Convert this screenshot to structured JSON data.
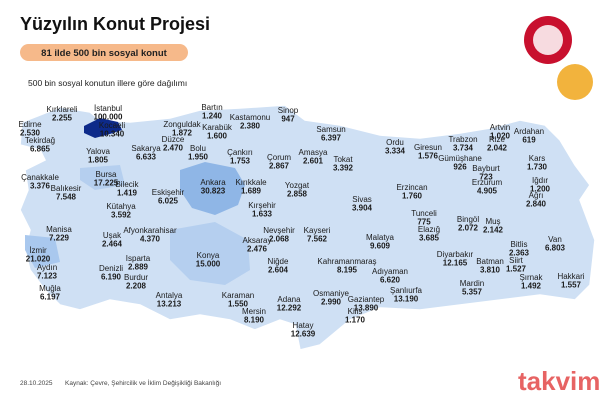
{
  "header": {
    "title": "Yüzyılın Konut Projesi",
    "badge": "81 ilde 500 bin sosyal konut",
    "caption": "500 bin sosyal konutun illere göre dağılımı"
  },
  "provinces": [
    {
      "name": "Kırklareli",
      "value": "2.255"
    },
    {
      "name": "İstanbul",
      "value": "100.000"
    },
    {
      "name": "Edirne",
      "value": "2.530"
    },
    {
      "name": "Tekirdağ",
      "value": "6.865"
    },
    {
      "name": "Kocaeli",
      "value": "10.340"
    },
    {
      "name": "Zonguldak",
      "value": "1.872"
    },
    {
      "name": "Bartın",
      "value": "1.240"
    },
    {
      "name": "Kastamonu",
      "value": "2.380"
    },
    {
      "name": "Sinop",
      "value": "947"
    },
    {
      "name": "Karabük",
      "value": "1.600"
    },
    {
      "name": "Samsun",
      "value": "6.397"
    },
    {
      "name": "Artvin",
      "value": "1.020"
    },
    {
      "name": "Ardahan",
      "value": "619"
    },
    {
      "name": "Yalova",
      "value": "1.805"
    },
    {
      "name": "Sakarya",
      "value": "6.633"
    },
    {
      "name": "Düzce",
      "value": "2.470"
    },
    {
      "name": "Bolu",
      "value": "1.950"
    },
    {
      "name": "Çankırı",
      "value": "1.753"
    },
    {
      "name": "Çorum",
      "value": "2.867"
    },
    {
      "name": "Amasya",
      "value": "2.601"
    },
    {
      "name": "Tokat",
      "value": "3.392"
    },
    {
      "name": "Ordu",
      "value": "3.334"
    },
    {
      "name": "Giresun",
      "value": "1.576"
    },
    {
      "name": "Trabzon",
      "value": "3.734"
    },
    {
      "name": "Rize",
      "value": "2.042"
    },
    {
      "name": "Gümüşhane",
      "value": "926"
    },
    {
      "name": "Bayburt",
      "value": "723"
    },
    {
      "name": "Kars",
      "value": "1.730"
    },
    {
      "name": "Çanakkale",
      "value": "3.376"
    },
    {
      "name": "Bursa",
      "value": "17.225"
    },
    {
      "name": "Bilecik",
      "value": "1.419"
    },
    {
      "name": "Balıkesir",
      "value": "7.548"
    },
    {
      "name": "Eskişehir",
      "value": "6.025"
    },
    {
      "name": "Ankara",
      "value": "30.823"
    },
    {
      "name": "Kırıkkale",
      "value": "1.689"
    },
    {
      "name": "Yozgat",
      "value": "2.858"
    },
    {
      "name": "Erzincan",
      "value": "1.760"
    },
    {
      "name": "Erzurum",
      "value": "4.905"
    },
    {
      "name": "Iğdır",
      "value": "1.200"
    },
    {
      "name": "Kütahya",
      "value": "3.592"
    },
    {
      "name": "Kırşehir",
      "value": "1.633"
    },
    {
      "name": "Sivas",
      "value": "3.904"
    },
    {
      "name": "Ağrı",
      "value": "2.840"
    },
    {
      "name": "Manisa",
      "value": "7.229"
    },
    {
      "name": "Uşak",
      "value": "2.464"
    },
    {
      "name": "Afyonkarahisar",
      "value": "4.370"
    },
    {
      "name": "Nevşehir",
      "value": "2.068"
    },
    {
      "name": "Kayseri",
      "value": "7.562"
    },
    {
      "name": "Tunceli",
      "value": "775"
    },
    {
      "name": "Elazığ",
      "value": "3.685"
    },
    {
      "name": "Bingöl",
      "value": "2.072"
    },
    {
      "name": "Muş",
      "value": "2.142"
    },
    {
      "name": "Malatya",
      "value": "9.609"
    },
    {
      "name": "Aksaray",
      "value": "2.476"
    },
    {
      "name": "İzmir",
      "value": "21.020"
    },
    {
      "name": "Konya",
      "value": "15.000"
    },
    {
      "name": "Isparta",
      "value": "2.889"
    },
    {
      "name": "Niğde",
      "value": "2.604"
    },
    {
      "name": "Bitlis",
      "value": "2.363"
    },
    {
      "name": "Van",
      "value": "6.803"
    },
    {
      "name": "Diyarbakır",
      "value": "12.165"
    },
    {
      "name": "Batman",
      "value": "3.810"
    },
    {
      "name": "Siirt",
      "value": "1.527"
    },
    {
      "name": "Aydın",
      "value": "7.123"
    },
    {
      "name": "Denizli",
      "value": "6.190"
    },
    {
      "name": "Kahramanmaraş",
      "value": "8.195"
    },
    {
      "name": "Adıyaman",
      "value": "6.620"
    },
    {
      "name": "Şırnak",
      "value": "1.492"
    },
    {
      "name": "Hakkari",
      "value": "1.557"
    },
    {
      "name": "Burdur",
      "value": "2.208"
    },
    {
      "name": "Muğla",
      "value": "6.197"
    },
    {
      "name": "Antalya",
      "value": "13.213"
    },
    {
      "name": "Karaman",
      "value": "1.550"
    },
    {
      "name": "Osmaniye",
      "value": "2.990"
    },
    {
      "name": "Şanlıurfa",
      "value": "13.190"
    },
    {
      "name": "Mardin",
      "value": "5.357"
    },
    {
      "name": "Adana",
      "value": "12.292"
    },
    {
      "name": "Gaziantep",
      "value": "13.890"
    },
    {
      "name": "Kilis",
      "value": "1.170"
    },
    {
      "name": "Mersin",
      "value": "8.190"
    },
    {
      "name": "Hatay",
      "value": "12.639"
    }
  ],
  "footer": {
    "date": "28.10.2025",
    "source": "Kaynak: Çevre, Şehircilik ve İklim Değişikliği Bakanlığı",
    "watermark": "takvim"
  }
}
